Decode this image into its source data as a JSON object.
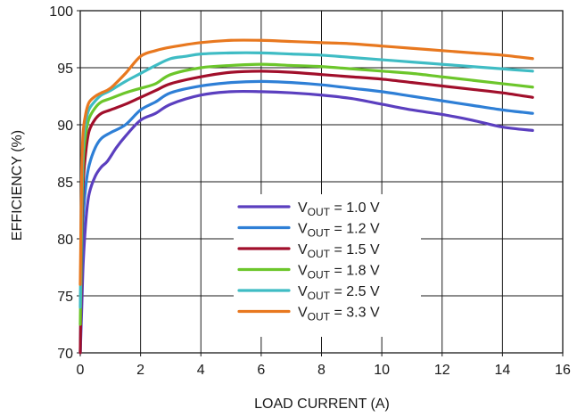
{
  "chart_data": {
    "type": "line",
    "title": "",
    "xlabel": "LOAD CURRENT (A)",
    "ylabel": "EFFICIENCY (%)",
    "xlim": [
      0,
      16
    ],
    "ylim": [
      70,
      100
    ],
    "xticks": [
      0,
      2,
      4,
      6,
      8,
      10,
      12,
      14,
      16
    ],
    "yticks": [
      70,
      75,
      80,
      85,
      90,
      95,
      100
    ],
    "grid": true,
    "legend_position": "center-right",
    "series": [
      {
        "name": "V_OUT = 1.0 V",
        "label_main": "V",
        "label_sub": "OUT",
        "label_rest": " = 1.0 V",
        "color": "#5b3fbf",
        "x": [
          0,
          0.05,
          0.1,
          0.2,
          0.3,
          0.5,
          0.7,
          0.9,
          1.2,
          1.5,
          2,
          2.5,
          3,
          4,
          5,
          6,
          7,
          8,
          9,
          10,
          11,
          12,
          13,
          14,
          15
        ],
        "y": [
          70,
          74,
          78,
          82,
          84,
          85.5,
          86.3,
          86.8,
          88,
          89,
          90.4,
          91,
          91.8,
          92.6,
          92.9,
          92.9,
          92.8,
          92.6,
          92.3,
          91.8,
          91.3,
          90.9,
          90.4,
          89.8,
          89.5
        ]
      },
      {
        "name": "V_OUT = 1.2 V",
        "label_main": "V",
        "label_sub": "OUT",
        "label_rest": " = 1.2 V",
        "color": "#2e7fd6",
        "x": [
          0,
          0.05,
          0.1,
          0.2,
          0.3,
          0.5,
          0.7,
          1,
          1.5,
          2,
          2.5,
          3,
          4,
          5,
          6,
          7,
          8,
          9,
          10,
          11,
          12,
          13,
          14,
          15
        ],
        "y": [
          70,
          78,
          82,
          85,
          86.5,
          88,
          88.8,
          89.3,
          90,
          91.3,
          92,
          92.8,
          93.4,
          93.7,
          93.8,
          93.7,
          93.5,
          93.2,
          92.9,
          92.5,
          92.1,
          91.7,
          91.3,
          91
        ],
        "x_raw_note": ""
      },
      {
        "name": "V_OUT = 1.5 V",
        "label_main": "V",
        "label_sub": "OUT",
        "label_rest": " = 1.5 V",
        "color": "#a10f2b",
        "x": [
          0,
          0.05,
          0.1,
          0.2,
          0.3,
          0.5,
          0.7,
          1,
          1.5,
          2,
          2.5,
          3,
          4,
          5,
          6,
          7,
          8,
          9,
          10,
          11,
          12,
          13,
          14,
          15
        ],
        "y": [
          70,
          80,
          85,
          88,
          89.5,
          90.5,
          91,
          91.3,
          91.8,
          92.4,
          93,
          93.6,
          94.2,
          94.6,
          94.7,
          94.6,
          94.4,
          94.2,
          94,
          93.7,
          93.4,
          93.1,
          92.8,
          92.4
        ]
      },
      {
        "name": "V_OUT = 1.8 V",
        "label_main": "V",
        "label_sub": "OUT",
        "label_rest": " = 1.8 V",
        "color": "#6cc62b",
        "x": [
          0,
          0.05,
          0.1,
          0.2,
          0.3,
          0.5,
          0.7,
          1,
          1.5,
          2,
          2.5,
          3,
          4,
          5,
          6,
          7,
          8,
          9,
          10,
          11,
          12,
          13,
          14,
          15
        ],
        "y": [
          72.5,
          82,
          87,
          89.5,
          90.6,
          91.5,
          92,
          92.3,
          92.8,
          93.2,
          93.6,
          94.4,
          95,
          95.2,
          95.3,
          95.2,
          95.1,
          94.9,
          94.7,
          94.5,
          94.2,
          93.9,
          93.6,
          93.3
        ]
      },
      {
        "name": "V_OUT = 2.5 V",
        "label_main": "V",
        "label_sub": "OUT",
        "label_rest": " = 2.5 V",
        "color": "#3fbcc4",
        "x": [
          0,
          0.05,
          0.1,
          0.2,
          0.3,
          0.5,
          0.7,
          1,
          1.5,
          2,
          2.5,
          3,
          3.5,
          4,
          5,
          6,
          7,
          8,
          9,
          10,
          11,
          12,
          13,
          14,
          15
        ],
        "y": [
          74,
          84,
          88.5,
          90.5,
          91.4,
          92.1,
          92.6,
          93,
          93.8,
          94.5,
          95.2,
          95.8,
          96,
          96.2,
          96.3,
          96.3,
          96.2,
          96.1,
          95.9,
          95.7,
          95.5,
          95.3,
          95.1,
          94.9,
          94.7
        ]
      },
      {
        "name": "V_OUT = 3.3 V",
        "label_main": "V",
        "label_sub": "OUT",
        "label_rest": " = 3.3 V",
        "color": "#e8781f",
        "x": [
          0,
          0.05,
          0.1,
          0.2,
          0.3,
          0.5,
          0.7,
          1,
          1.5,
          2,
          2.5,
          3,
          4,
          5,
          6,
          7,
          8,
          9,
          10,
          11,
          12,
          13,
          14,
          15
        ],
        "y": [
          76,
          86,
          89.5,
          91.2,
          92,
          92.5,
          92.8,
          93.2,
          94.5,
          96,
          96.5,
          96.8,
          97.2,
          97.4,
          97.4,
          97.3,
          97.2,
          97.1,
          96.9,
          96.7,
          96.5,
          96.3,
          96.1,
          95.8
        ]
      }
    ]
  }
}
